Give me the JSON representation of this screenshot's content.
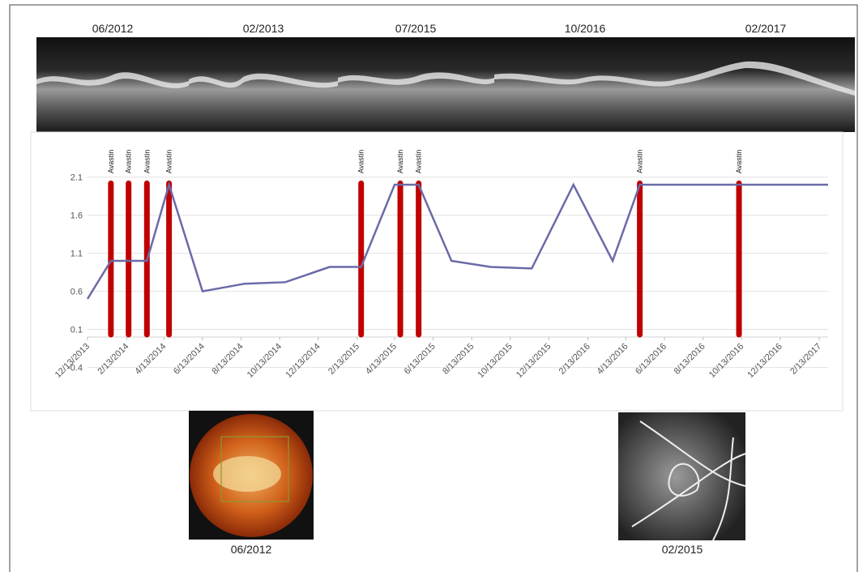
{
  "top_images": [
    {
      "label": "06/2012"
    },
    {
      "label": "02/2013"
    },
    {
      "label": "07/2015"
    },
    {
      "label": "10/2016"
    },
    {
      "label": "02/2017"
    }
  ],
  "bottom_images": [
    {
      "label": "06/2012"
    },
    {
      "label": "02/2015"
    }
  ],
  "chart_data": {
    "type": "line",
    "x": [
      "2013-12-13",
      "2014-01-19",
      "2014-03-17",
      "2014-04-21",
      "2014-06-13",
      "2014-08-19",
      "2014-10-22",
      "2014-12-31",
      "2015-02-19",
      "2015-04-13",
      "2015-05-21",
      "2015-07-12",
      "2015-09-12",
      "2015-11-16",
      "2016-01-21",
      "2016-03-23",
      "2016-05-05",
      "2017-02-27"
    ],
    "values": [
      0.5,
      1.0,
      1.0,
      2.0,
      0.6,
      0.7,
      0.72,
      0.92,
      0.92,
      2.0,
      2.0,
      1.0,
      0.92,
      0.9,
      2.0,
      1.0,
      2.0,
      2.0
    ],
    "color": "#6a6aa8",
    "events": {
      "x": [
        "2014-01-19",
        "2014-02-16",
        "2014-03-17",
        "2014-04-21",
        "2015-02-19",
        "2015-04-22",
        "2015-05-21",
        "2016-05-05",
        "2016-10-09"
      ],
      "values": [
        2.05,
        2.05,
        2.05,
        2.05,
        2.05,
        2.05,
        2.05,
        2.05,
        2.05
      ],
      "labels": [
        "Avastin",
        "Avastin",
        "Avastin",
        "Avastin",
        "Avastin",
        "Avastin",
        "Avastin",
        "Avastin",
        "Avastin"
      ],
      "color": "#c00000"
    },
    "xlim": [
      "2013-12-13",
      "2017-02-27"
    ],
    "xticks": [
      {
        "value": "2013-12-13",
        "label": "12/13/2013"
      },
      {
        "value": "2014-02-13",
        "label": "2/13/2014"
      },
      {
        "value": "2014-04-13",
        "label": "4/13/2014"
      },
      {
        "value": "2014-06-13",
        "label": "6/13/2014"
      },
      {
        "value": "2014-08-13",
        "label": "8/13/2014"
      },
      {
        "value": "2014-10-13",
        "label": "10/13/2014"
      },
      {
        "value": "2014-12-13",
        "label": "12/13/2014"
      },
      {
        "value": "2015-02-13",
        "label": "2/13/2015"
      },
      {
        "value": "2015-04-13",
        "label": "4/13/2015"
      },
      {
        "value": "2015-06-13",
        "label": "6/13/2015"
      },
      {
        "value": "2015-08-13",
        "label": "8/13/2015"
      },
      {
        "value": "2015-10-13",
        "label": "10/13/2015"
      },
      {
        "value": "2015-12-13",
        "label": "12/13/2015"
      },
      {
        "value": "2016-02-13",
        "label": "2/13/2016"
      },
      {
        "value": "2016-04-13",
        "label": "4/13/2016"
      },
      {
        "value": "2016-06-13",
        "label": "6/13/2016"
      },
      {
        "value": "2016-08-13",
        "label": "8/13/2016"
      },
      {
        "value": "2016-10-13",
        "label": "10/13/2016"
      },
      {
        "value": "2016-12-13",
        "label": "12/13/2016"
      },
      {
        "value": "2017-02-13",
        "label": "2/13/2017"
      }
    ],
    "ylim": [
      -0.4,
      2.1
    ],
    "yticks": [
      -0.4,
      0.1,
      0.6,
      1.1,
      1.6,
      2.1
    ],
    "grid": true
  }
}
